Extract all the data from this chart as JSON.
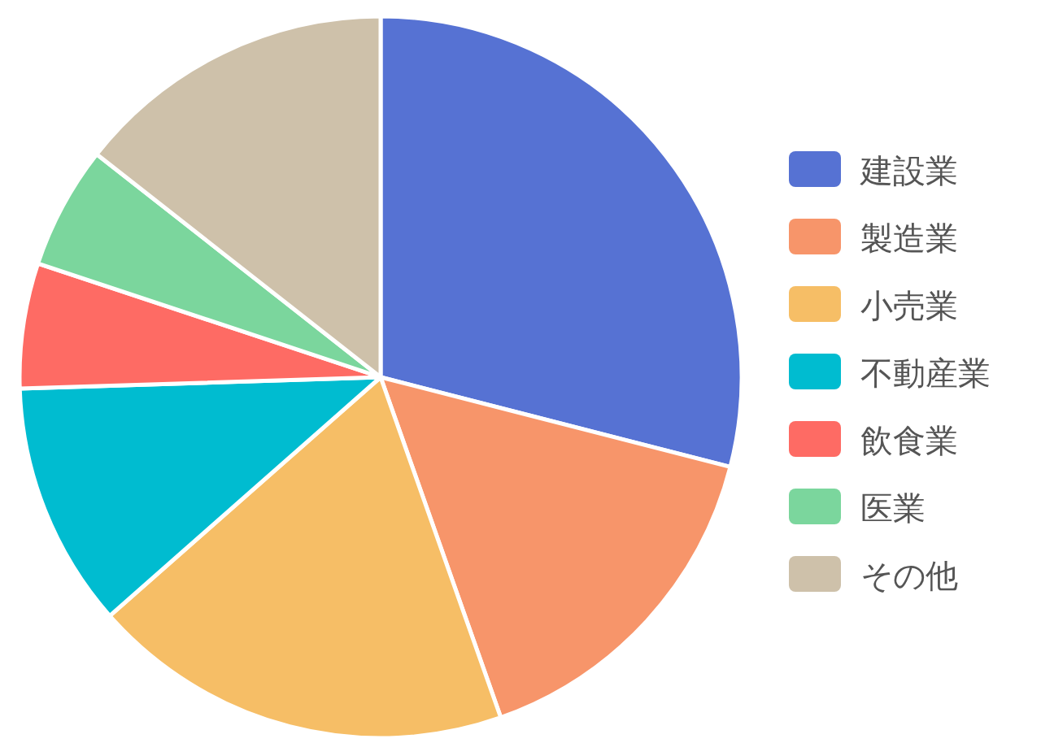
{
  "chart_data": {
    "type": "pie",
    "categories": [
      "建設業",
      "製造業",
      "小売業",
      "不動産業",
      "飲食業",
      "医業",
      "その他"
    ],
    "values": [
      29,
      15.6,
      18.9,
      11,
      5.6,
      5.5,
      14.4
    ],
    "colors": [
      "#5672d3",
      "#f7956a",
      "#f6be66",
      "#00bcd0",
      "#fe6b64",
      "#7bd69d",
      "#cec1aa"
    ],
    "legend": "right"
  }
}
